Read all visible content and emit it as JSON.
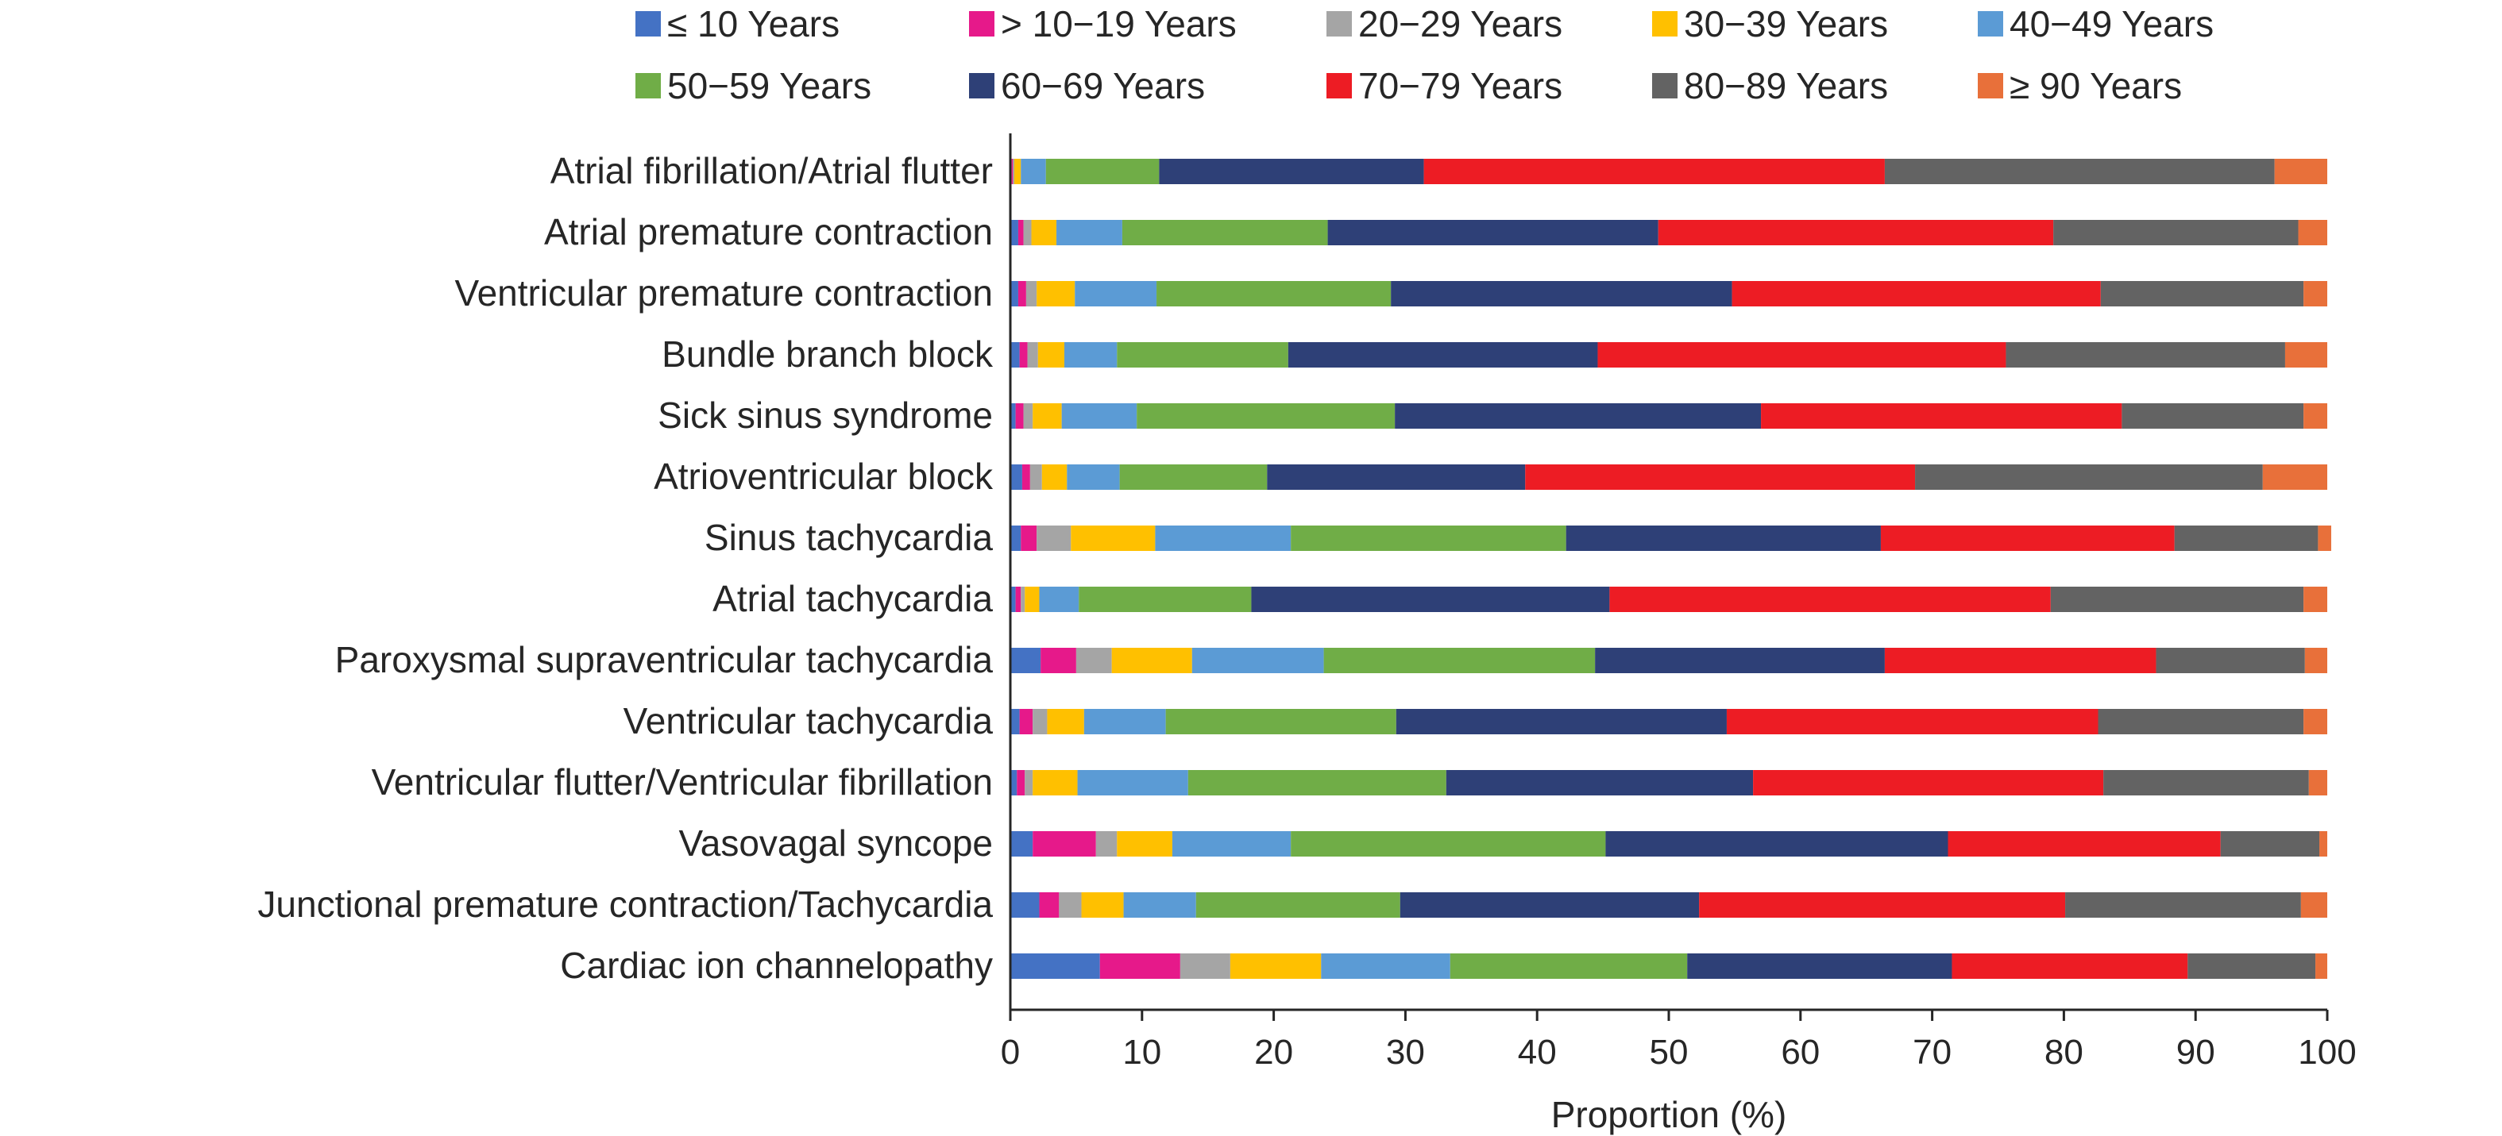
{
  "chart_data": {
    "type": "bar",
    "orientation": "horizontal",
    "stacked": true,
    "title": "",
    "xlabel": "Proportion (%)",
    "ylabel": "",
    "xlim": [
      0,
      100
    ],
    "xticks": [
      "0",
      "10",
      "20",
      "30",
      "40",
      "50",
      "60",
      "70",
      "80",
      "90",
      "100"
    ],
    "grid": false,
    "legend_position": "top",
    "categories": [
      "Atrial fibrillation/Atrial flutter",
      "Atrial premature contraction",
      "Ventricular premature contraction",
      "Bundle branch block",
      "Sick sinus syndrome",
      "Atrioventricular block",
      "Sinus tachycardia",
      "Atrial tachycardia",
      "Paroxysmal supraventricular tachycardia",
      "Ventricular tachycardia",
      "Ventricular flutter/Ventricular fibrillation",
      "Vasovagal syncope",
      "Junctional premature contraction/Tachycardia",
      "Cardiac ion channelopathy"
    ],
    "series": [
      {
        "name": "≤ 10 Years",
        "color": "#4472C4",
        "values": [
          0.1,
          0.6,
          0.6,
          0.7,
          0.4,
          0.9,
          0.8,
          0.4,
          2.3,
          0.7,
          0.5,
          1.7,
          2.2,
          6.8
        ]
      },
      {
        "name": "> 10−19 Years",
        "color": "#E6198A",
        "values": [
          0.1,
          0.4,
          0.6,
          0.6,
          0.6,
          0.6,
          1.2,
          0.4,
          2.7,
          1.0,
          0.6,
          4.8,
          1.5,
          6.1
        ]
      },
      {
        "name": "20−29 Years",
        "color": "#A5A5A5",
        "values": [
          0.1,
          0.6,
          0.8,
          0.8,
          0.7,
          0.9,
          2.6,
          0.3,
          2.7,
          1.1,
          0.6,
          1.6,
          1.7,
          3.8
        ]
      },
      {
        "name": "30−39 Years",
        "color": "#FFC000",
        "values": [
          0.5,
          1.9,
          2.9,
          2.0,
          2.2,
          1.9,
          6.4,
          1.1,
          6.1,
          2.8,
          3.4,
          4.2,
          3.2,
          6.9
        ]
      },
      {
        "name": "40−49 Years",
        "color": "#5B9BD5",
        "values": [
          1.9,
          5.0,
          6.2,
          4.0,
          5.7,
          4.0,
          10.3,
          3.0,
          10.0,
          6.2,
          8.4,
          9.0,
          5.5,
          9.8
        ]
      },
      {
        "name": "50−59 Years",
        "color": "#70AD47",
        "values": [
          8.6,
          15.6,
          17.8,
          13.0,
          19.6,
          11.2,
          20.9,
          13.1,
          20.6,
          17.5,
          19.6,
          23.9,
          15.5,
          18.0
        ]
      },
      {
        "name": "60−69 Years",
        "color": "#2E4077",
        "values": [
          20.1,
          25.1,
          25.9,
          23.5,
          27.8,
          19.6,
          23.9,
          27.2,
          22.0,
          25.1,
          23.3,
          26.0,
          22.7,
          20.1
        ]
      },
      {
        "name": "70−79 Years",
        "color": "#ED1C24",
        "values": [
          35.0,
          30.0,
          28.0,
          31.0,
          27.4,
          29.6,
          22.3,
          33.5,
          20.6,
          28.2,
          26.6,
          20.7,
          27.8,
          17.9
        ]
      },
      {
        "name": "80−89 Years",
        "color": "#636363",
        "values": [
          29.6,
          18.6,
          15.4,
          21.2,
          13.8,
          26.4,
          10.9,
          19.2,
          11.3,
          15.6,
          15.6,
          7.5,
          17.9,
          9.7
        ]
      },
      {
        "name": "≥ 90 Years",
        "color": "#E8703A",
        "values": [
          4.0,
          2.2,
          1.8,
          3.2,
          1.8,
          4.9,
          1.0,
          1.8,
          1.7,
          1.8,
          1.4,
          0.6,
          2.0,
          0.9
        ]
      }
    ]
  }
}
